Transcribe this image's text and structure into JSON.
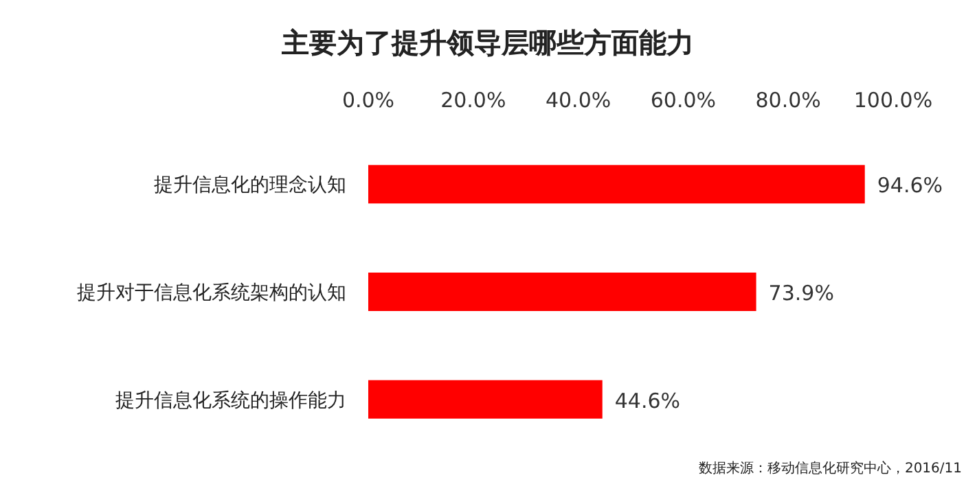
{
  "chart_data": {
    "type": "bar",
    "orientation": "horizontal",
    "title": "主要为了提升领导层哪些方面能力",
    "categories": [
      "提升信息化的理念认知",
      "提升对于信息化系统架构的认知",
      "提升信息化系统的操作能力"
    ],
    "series": [
      {
        "color": "#ff0000",
        "values": [
          94.6,
          73.9,
          44.6
        ],
        "value_labels": [
          "94.6%",
          "73.9%",
          "44.6%"
        ]
      }
    ],
    "xlim": [
      0,
      100
    ],
    "xticks": [
      {
        "value": 0,
        "label": "0.0%"
      },
      {
        "value": 20,
        "label": "20.0%"
      },
      {
        "value": 40,
        "label": "40.0%"
      },
      {
        "value": 60,
        "label": "60.0%"
      },
      {
        "value": 80,
        "label": "80.0%"
      },
      {
        "value": 100,
        "label": "100.0%"
      }
    ],
    "grid": false,
    "annotations": [
      "数据来源：移动信息化研究中心，2016/11"
    ]
  }
}
